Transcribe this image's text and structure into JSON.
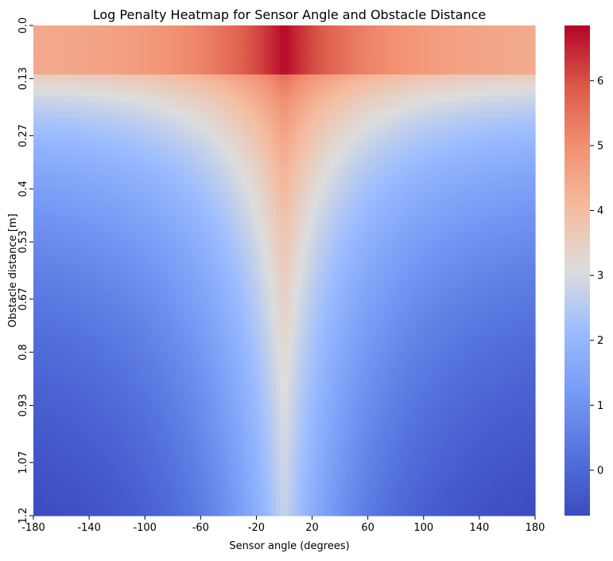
{
  "chart_data": {
    "type": "heatmap",
    "title": "Log Penalty Heatmap for Sensor Angle and Obstacle Distance",
    "xlabel": "Sensor angle (degrees)",
    "ylabel": "Obstacle distance [m]",
    "x_ticks": [
      "-180",
      "-140",
      "-100",
      "-60",
      "-20",
      "20",
      "60",
      "100",
      "140",
      "180"
    ],
    "x_tick_values": [
      -180,
      -140,
      -100,
      -60,
      -20,
      20,
      60,
      100,
      140,
      180
    ],
    "y_ticks": [
      "0.0",
      "0.13",
      "0.27",
      "0.4",
      "0.53",
      "0.67",
      "0.8",
      "0.93",
      "1.07",
      "1.2"
    ],
    "y_tick_values": [
      0.0,
      0.13,
      0.27,
      0.4,
      0.53,
      0.67,
      0.8,
      0.93,
      1.07,
      1.2
    ],
    "xlim": [
      -180,
      180
    ],
    "ylim": [
      0.0,
      1.2
    ],
    "y_inverted": true,
    "colorbar": {
      "ticks": [
        "0",
        "1",
        "2",
        "3",
        "4",
        "5",
        "6"
      ],
      "tick_values": [
        0,
        1,
        2,
        3,
        4,
        5,
        6
      ],
      "range": [
        -0.7,
        6.85
      ],
      "colormap": "coolwarm"
    },
    "grid": false,
    "description_of_values": {
      "peak_value": 6.85,
      "peak_location": {
        "angle": 0,
        "distance": 0.0
      },
      "min_value": -0.7,
      "min_location": {
        "angle": [
          -180,
          180
        ],
        "distance": 1.2
      }
    }
  },
  "colors": {
    "cold": "#3b4cc0",
    "neutral": "#dddddd",
    "hot": "#b40426"
  }
}
